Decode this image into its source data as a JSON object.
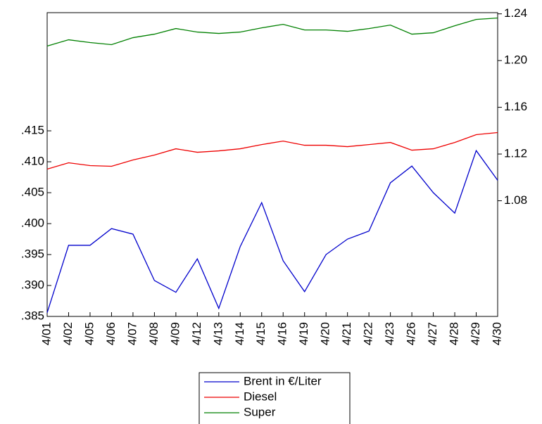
{
  "chart_data": {
    "type": "line",
    "categories": [
      "4/01",
      "4/02",
      "4/05",
      "4/06",
      "4/07",
      "4/08",
      "4/09",
      "4/12",
      "4/13",
      "4/14",
      "4/15",
      "4/16",
      "4/19",
      "4/20",
      "4/21",
      "4/22",
      "4/23",
      "4/26",
      "4/27",
      "4/28",
      "4/29",
      "4/30"
    ],
    "series": [
      {
        "name": "Brent in €/Liter",
        "color": "#0000cc",
        "values": [
          0.3856,
          0.3965,
          0.3965,
          0.3992,
          0.3983,
          0.3908,
          0.3889,
          0.3943,
          0.3863,
          0.3963,
          0.4034,
          0.394,
          0.389,
          0.395,
          0.3975,
          0.3988,
          0.4066,
          0.4093,
          0.405,
          0.4017,
          0.4118,
          0.407
        ]
      },
      {
        "name": "Diesel",
        "color": "#ee0000",
        "axis": "y2",
        "values": [
          1.1071,
          1.1125,
          1.1101,
          1.1095,
          1.1149,
          1.1191,
          1.1245,
          1.1215,
          1.1227,
          1.1245,
          1.1281,
          1.1311,
          1.1275,
          1.1275,
          1.1263,
          1.1281,
          1.1299,
          1.1233,
          1.1245,
          1.1299,
          1.1366,
          1.1384
        ]
      },
      {
        "name": "Super",
        "color": "#008000",
        "axis": "y2",
        "values": [
          1.2124,
          1.2178,
          1.2154,
          1.2136,
          1.2196,
          1.2226,
          1.2274,
          1.2244,
          1.2232,
          1.2244,
          1.228,
          1.231,
          1.2262,
          1.2262,
          1.225,
          1.2274,
          1.2304,
          1.2226,
          1.2238,
          1.2298,
          1.2352,
          1.2364
        ]
      }
    ],
    "ylim": [
      0.385,
      0.4341
    ],
    "yticks": [
      {
        "value": 0.385,
        "label": ".385"
      },
      {
        "value": 0.39,
        "label": ".390"
      },
      {
        "value": 0.395,
        "label": ".395"
      },
      {
        "value": 0.4,
        "label": ".400"
      },
      {
        "value": 0.405,
        "label": ".405"
      },
      {
        "value": 0.41,
        "label": ".410"
      },
      {
        "value": 0.415,
        "label": ".415"
      }
    ],
    "y2lim": [
      0.981,
      1.241
    ],
    "y2ticks": [
      1.08,
      1.12,
      1.16,
      {
        "value": 1.2,
        "label": "1.20"
      },
      1.24
    ],
    "legend": "bottom"
  }
}
